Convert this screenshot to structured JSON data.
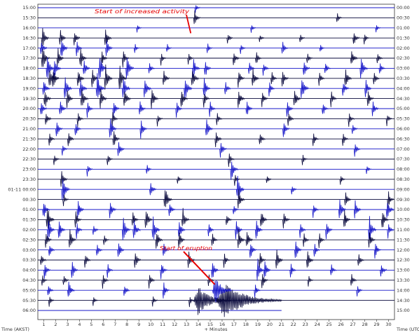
{
  "chart_data": {
    "type": "line",
    "title": "",
    "xlabel": "+ Minutes",
    "ylabel_left": "Time (AKST)",
    "ylabel_right": "Time (UTC)",
    "x_ticks": [
      1,
      2,
      3,
      4,
      5,
      6,
      7,
      8,
      9,
      10,
      11,
      12,
      13,
      14,
      15,
      16,
      17,
      18,
      19,
      20,
      21,
      22,
      23,
      24,
      25,
      26,
      27,
      28,
      29,
      30
    ],
    "xlim": [
      0,
      30
    ],
    "rows_left": [
      "15:00",
      "15:30",
      "16:00",
      "16:30",
      "17:00",
      "17:30",
      "18:00",
      "18:30",
      "19:00",
      "19:30",
      "20:00",
      "20:30",
      "21:00",
      "21:30",
      "22:00",
      "22:30",
      "23:00",
      "23:30",
      "01-11 00:00",
      "00:30",
      "01:00",
      "01:30",
      "02:00",
      "02:30",
      "03:00",
      "03:30",
      "04:00",
      "04:30",
      "05:00",
      "05:30",
      "06:00"
    ],
    "rows_right": [
      "00:00",
      "00:30",
      "01:00",
      "01:30",
      "02:00",
      "02:30",
      "03:00",
      "03:30",
      "04:00",
      "04:30",
      "05:00",
      "05:30",
      "06:00",
      "06:30",
      "07:00",
      "07:30",
      "08:00",
      "08:30",
      "09:00",
      "09:30",
      "10:00",
      "10:30",
      "11:00",
      "11:30",
      "12:00",
      "12:30",
      "13:00",
      "13:30",
      "14:00",
      "14:30",
      "15:00"
    ],
    "series_colors": [
      "#1515c8",
      "#0a0a3c"
    ],
    "annotations": [
      {
        "text": "Start of increased activity",
        "x_minute": 13.1,
        "row": 1
      },
      {
        "text": "Start of eruption",
        "x_minute": 15.0,
        "row": 27
      }
    ],
    "events": [
      [
        0,
        13.2,
        0.7
      ],
      [
        1,
        13.1,
        1.2
      ],
      [
        1,
        25.1,
        0.8
      ],
      [
        2,
        8.3,
        0.6
      ],
      [
        2,
        17.9,
        0.6
      ],
      [
        2,
        28.4,
        0.6
      ],
      [
        3,
        0.3,
        1.6
      ],
      [
        3,
        1.8,
        1.3
      ],
      [
        3,
        3.0,
        1.2
      ],
      [
        3,
        5.6,
        1.4
      ],
      [
        3,
        15.9,
        0.9
      ],
      [
        3,
        18.6,
        0.7
      ],
      [
        3,
        22.0,
        0.8
      ],
      [
        3,
        26.5,
        1.2
      ],
      [
        3,
        27.4,
        0.8
      ],
      [
        4,
        0.2,
        1.3
      ],
      [
        4,
        1.9,
        1.5
      ],
      [
        4,
        3.2,
        1.1
      ],
      [
        4,
        5.7,
        1.3
      ],
      [
        4,
        8.1,
        0.7
      ],
      [
        4,
        10.8,
        0.7
      ],
      [
        4,
        14.2,
        0.8
      ],
      [
        4,
        17.0,
        0.8
      ],
      [
        4,
        20.5,
        1.1
      ],
      [
        4,
        23.7,
        0.6
      ],
      [
        5,
        0.3,
        1.8
      ],
      [
        5,
        1.6,
        1.4
      ],
      [
        5,
        3.5,
        1.5
      ],
      [
        5,
        5.3,
        1.2
      ],
      [
        5,
        7.1,
        1.3
      ],
      [
        5,
        10.3,
        0.9
      ],
      [
        5,
        12.6,
        0.9
      ],
      [
        5,
        16.4,
        1.2
      ],
      [
        5,
        18.3,
        1.0
      ],
      [
        5,
        22.6,
        0.9
      ],
      [
        5,
        26.3,
        1.4
      ],
      [
        5,
        28.5,
        1.0
      ],
      [
        6,
        0.7,
        1.8
      ],
      [
        6,
        1.3,
        1.6
      ],
      [
        6,
        3.8,
        1.4
      ],
      [
        6,
        5.1,
        1.8
      ],
      [
        6,
        7.4,
        1.8
      ],
      [
        6,
        9.3,
        1.0
      ],
      [
        6,
        13.0,
        1.5
      ],
      [
        6,
        14.0,
        1.3
      ],
      [
        6,
        17.7,
        1.1
      ],
      [
        6,
        18.9,
        1.0
      ],
      [
        6,
        22.3,
        1.3
      ],
      [
        6,
        24.1,
        1.0
      ],
      [
        6,
        27.1,
        1.6
      ],
      [
        6,
        28.7,
        1.0
      ],
      [
        7,
        0.9,
        1.6
      ],
      [
        7,
        1.2,
        1.5
      ],
      [
        7,
        3.3,
        1.4
      ],
      [
        7,
        4.5,
        1.3
      ],
      [
        7,
        5.6,
        1.8
      ],
      [
        7,
        6.8,
        1.8
      ],
      [
        7,
        10.5,
        1.3
      ],
      [
        7,
        12.9,
        1.6
      ],
      [
        7,
        16.8,
        1.3
      ],
      [
        7,
        18.0,
        1.4
      ],
      [
        7,
        19.6,
        1.0
      ],
      [
        7,
        20.5,
        1.3
      ],
      [
        7,
        23.6,
        1.0
      ],
      [
        7,
        25.8,
        1.4
      ],
      [
        7,
        28.2,
        1.1
      ],
      [
        8,
        0.4,
        1.4
      ],
      [
        8,
        2.2,
        1.8
      ],
      [
        8,
        3.5,
        1.6
      ],
      [
        8,
        4.9,
        1.9
      ],
      [
        8,
        7.1,
        1.8
      ],
      [
        8,
        8.9,
        1.6
      ],
      [
        8,
        12.3,
        1.8
      ],
      [
        8,
        13.9,
        1.5
      ],
      [
        8,
        15.7,
        1.1
      ],
      [
        8,
        19.4,
        1.0
      ],
      [
        8,
        22.1,
        1.8
      ],
      [
        8,
        25.6,
        1.2
      ],
      [
        8,
        27.5,
        1.3
      ],
      [
        9,
        0.5,
        1.5
      ],
      [
        9,
        2.4,
        1.3
      ],
      [
        9,
        3.6,
        1.6
      ],
      [
        9,
        5.2,
        1.5
      ],
      [
        9,
        7.2,
        1.5
      ],
      [
        9,
        9.5,
        1.5
      ],
      [
        9,
        12.0,
        1.4
      ],
      [
        9,
        13.9,
        1.1
      ],
      [
        9,
        16.8,
        1.4
      ],
      [
        9,
        18.8,
        1.2
      ],
      [
        9,
        21.5,
        1.5
      ],
      [
        9,
        24.6,
        1.1
      ],
      [
        9,
        27.7,
        1.2
      ],
      [
        10,
        0.2,
        1.2
      ],
      [
        10,
        1.8,
        1.3
      ],
      [
        10,
        4.1,
        1.1
      ],
      [
        10,
        6.3,
        1.2
      ],
      [
        10,
        8.5,
        1.2
      ],
      [
        10,
        11.6,
        1.1
      ],
      [
        10,
        14.4,
        1.1
      ],
      [
        10,
        17.5,
        1.2
      ],
      [
        10,
        20.9,
        1.3
      ],
      [
        10,
        23.9,
        1.1
      ],
      [
        10,
        28.1,
        1.2
      ],
      [
        11,
        0.6,
        1.2
      ],
      [
        11,
        3.3,
        1.0
      ],
      [
        11,
        6.2,
        1.1
      ],
      [
        11,
        10.0,
        0.9
      ],
      [
        11,
        15.0,
        1.0
      ],
      [
        11,
        21.0,
        1.1
      ],
      [
        11,
        26.1,
        1.1
      ],
      [
        11,
        29.3,
        0.9
      ],
      [
        12,
        1.5,
        1.3
      ],
      [
        12,
        3.1,
        1.1
      ],
      [
        12,
        6.0,
        1.6
      ],
      [
        12,
        8.6,
        1.3
      ],
      [
        12,
        14.1,
        1.5
      ],
      [
        12,
        20.6,
        1.2
      ],
      [
        12,
        26.4,
        0.9
      ],
      [
        13,
        0.9,
        1.0
      ],
      [
        13,
        2.5,
        1.2
      ],
      [
        13,
        6.3,
        1.3
      ],
      [
        13,
        14.9,
        1.3
      ],
      [
        13,
        18.6,
        1.1
      ],
      [
        13,
        23.1,
        1.0
      ],
      [
        13,
        25.6,
        1.0
      ],
      [
        14,
        2.0,
        0.9
      ],
      [
        14,
        6.7,
        1.3
      ],
      [
        14,
        15.3,
        1.3
      ],
      [
        14,
        26.6,
        1.0
      ],
      [
        15,
        1.3,
        0.9
      ],
      [
        15,
        5.8,
        0.9
      ],
      [
        15,
        16.0,
        1.1
      ],
      [
        15,
        22.2,
        0.8
      ],
      [
        16,
        4.1,
        0.9
      ],
      [
        16,
        9.1,
        0.8
      ],
      [
        16,
        16.2,
        1.6
      ],
      [
        16,
        27.6,
        0.7
      ],
      [
        17,
        1.9,
        1.3
      ],
      [
        17,
        11.7,
        0.8
      ],
      [
        17,
        16.5,
        0.9
      ],
      [
        17,
        19.2,
        0.7
      ],
      [
        17,
        25.4,
        0.7
      ],
      [
        18,
        2.0,
        1.8
      ],
      [
        18,
        9.4,
        1.2
      ],
      [
        18,
        16.7,
        1.8
      ],
      [
        18,
        21.3,
        0.8
      ],
      [
        19,
        2.1,
        0.9
      ],
      [
        19,
        10.6,
        1.9
      ],
      [
        19,
        16.8,
        1.4
      ],
      [
        19,
        25.8,
        1.2
      ],
      [
        19,
        29.4,
        1.2
      ],
      [
        20,
        0.4,
        1.4
      ],
      [
        20,
        3.3,
        1.4
      ],
      [
        20,
        6.0,
        1.3
      ],
      [
        20,
        11.0,
        1.2
      ],
      [
        20,
        16.4,
        0.9
      ],
      [
        20,
        23.1,
        1.0
      ],
      [
        20,
        25.3,
        1.5
      ],
      [
        20,
        26.6,
        1.4
      ],
      [
        20,
        29.3,
        1.6
      ],
      [
        21,
        0.7,
        1.9
      ],
      [
        21,
        3.1,
        1.2
      ],
      [
        21,
        7.9,
        1.2
      ],
      [
        21,
        9.0,
        1.6
      ],
      [
        21,
        12.1,
        1.6
      ],
      [
        21,
        15.8,
        1.0
      ],
      [
        21,
        18.7,
        1.4
      ],
      [
        21,
        20.6,
        1.3
      ],
      [
        21,
        25.7,
        1.4
      ],
      [
        21,
        28.9,
        1.4
      ],
      [
        22,
        0.8,
        1.5
      ],
      [
        22,
        1.7,
        1.4
      ],
      [
        22,
        3.2,
        1.1
      ],
      [
        22,
        4.6,
        0.9
      ],
      [
        22,
        7.1,
        1.7
      ],
      [
        22,
        8.0,
        1.6
      ],
      [
        22,
        9.6,
        1.8
      ],
      [
        22,
        11.8,
        1.4
      ],
      [
        22,
        14.3,
        1.0
      ],
      [
        22,
        16.6,
        1.5
      ],
      [
        22,
        18.3,
        1.4
      ],
      [
        22,
        22.0,
        1.1
      ],
      [
        22,
        24.2,
        1.3
      ],
      [
        22,
        27.8,
        1.8
      ],
      [
        22,
        29.4,
        1.1
      ],
      [
        23,
        0.6,
        1.2
      ],
      [
        23,
        2.6,
        1.5
      ],
      [
        23,
        5.5,
        0.9
      ],
      [
        23,
        9.9,
        1.4
      ],
      [
        23,
        11.8,
        1.3
      ],
      [
        23,
        14.6,
        1.0
      ],
      [
        23,
        16.8,
        1.5
      ],
      [
        23,
        17.5,
        1.4
      ],
      [
        23,
        22.3,
        1.0
      ],
      [
        23,
        23.6,
        1.0
      ],
      [
        23,
        27.8,
        1.3
      ],
      [
        24,
        0.9,
        1.0
      ],
      [
        24,
        4.9,
        1.1
      ],
      [
        24,
        6.7,
        1.3
      ],
      [
        24,
        10.5,
        1.1
      ],
      [
        24,
        17.8,
        1.3
      ],
      [
        24,
        21.6,
        1.4
      ],
      [
        24,
        23.2,
        1.0
      ],
      [
        24,
        28.3,
        1.2
      ],
      [
        25,
        0.2,
        1.0
      ],
      [
        25,
        3.9,
        1.1
      ],
      [
        25,
        8.1,
        1.3
      ],
      [
        25,
        12.6,
        1.3
      ],
      [
        25,
        15.6,
        1.1
      ],
      [
        25,
        18.6,
        1.2
      ],
      [
        25,
        20.0,
        1.5
      ],
      [
        25,
        22.6,
        1.4
      ],
      [
        25,
        26.9,
        1.1
      ],
      [
        26,
        0.5,
        1.2
      ],
      [
        26,
        2.8,
        1.3
      ],
      [
        26,
        5.8,
        1.0
      ],
      [
        26,
        10.3,
        1.3
      ],
      [
        26,
        14.6,
        1.4
      ],
      [
        26,
        18.4,
        1.6
      ],
      [
        26,
        19.0,
        1.4
      ],
      [
        26,
        21.2,
        1.0
      ],
      [
        26,
        24.6,
        1.0
      ],
      [
        26,
        28.8,
        1.2
      ],
      [
        27,
        0.3,
        0.9
      ],
      [
        27,
        2.1,
        0.9
      ],
      [
        27,
        5.4,
        1.1
      ],
      [
        27,
        9.3,
        1.1
      ],
      [
        27,
        14.3,
        1.0
      ],
      [
        27,
        18.8,
        1.2
      ],
      [
        27,
        22.7,
        0.8
      ],
      [
        27,
        26.3,
        1.0
      ],
      [
        28,
        0.8,
        1.0
      ],
      [
        28,
        2.5,
        1.4
      ],
      [
        28,
        7.2,
        1.0
      ],
      [
        28,
        10.5,
        1.2
      ],
      [
        28,
        18.2,
        1.0
      ],
      [
        28,
        26.8,
        0.9
      ],
      [
        29,
        0.9,
        0.8
      ],
      [
        29,
        4.6,
        0.7
      ],
      [
        29,
        9.6,
        0.8
      ],
      [
        29,
        12.7,
        0.8
      ]
    ],
    "eruption": {
      "row": 29,
      "start_minute": 13.1,
      "peak_minute": 15.0,
      "end_minute": 20.5,
      "amplitude": 2.1
    },
    "trace_end_minute_last_row": 20.5
  }
}
